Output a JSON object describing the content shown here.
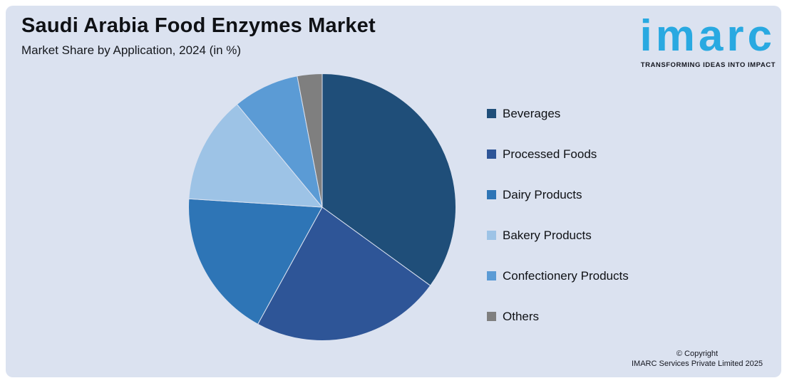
{
  "header": {
    "title": "Saudi Arabia Food Enzymes Market",
    "subtitle": "Market Share by Application, 2024 (in %)"
  },
  "logo": {
    "wordmark": "imarc",
    "tagline": "TRANSFORMING IDEAS INTO IMPACT",
    "brand_color": "#29A9E1"
  },
  "footer": {
    "copyright_line1": "© Copyright",
    "copyright_line2": "IMARC Services Private Limited 2025"
  },
  "colors": {
    "panel_background": "#DBE2F0",
    "page_background": "#FFFFFF"
  },
  "chart_data": {
    "type": "pie",
    "title": "Saudi Arabia Food Enzymes Market",
    "subtitle": "Market Share by Application, 2024 (in %)",
    "unit": "%",
    "start_angle_deg": 0,
    "direction": "clockwise",
    "legend_position": "right",
    "data_labels_shown": false,
    "slices": [
      {
        "label": "Beverages",
        "value": 35,
        "color": "#1F4E79"
      },
      {
        "label": "Processed Foods",
        "value": 23,
        "color": "#2E5597"
      },
      {
        "label": "Dairy Products",
        "value": 18,
        "color": "#2E75B6"
      },
      {
        "label": "Bakery Products",
        "value": 13,
        "color": "#9DC3E6"
      },
      {
        "label": "Confectionery Products",
        "value": 8,
        "color": "#5B9BD5"
      },
      {
        "label": "Others",
        "value": 3,
        "color": "#7F7F7F"
      }
    ]
  }
}
